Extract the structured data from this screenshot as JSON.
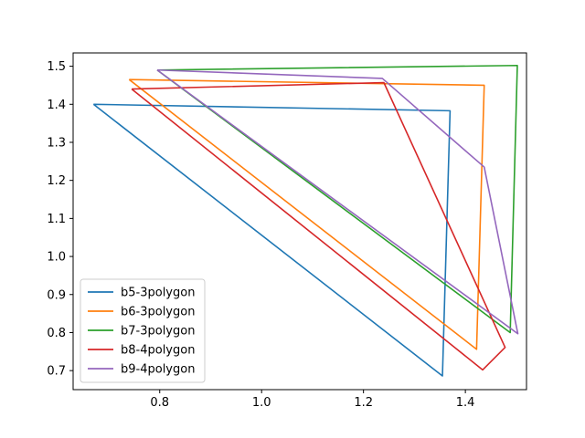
{
  "chart_data": {
    "type": "line",
    "xlim": [
      0.63,
      1.52
    ],
    "ylim": [
      0.65,
      1.535
    ],
    "xticks": [
      0.8,
      1.0,
      1.2,
      1.4
    ],
    "xtick_labels": [
      "0.8",
      "1.0",
      "1.2",
      "1.4"
    ],
    "yticks": [
      0.7,
      0.8,
      0.9,
      1.0,
      1.1,
      1.2,
      1.3,
      1.4,
      1.5
    ],
    "ytick_labels": [
      "0.7",
      "0.8",
      "0.9",
      "1.0",
      "1.1",
      "1.2",
      "1.3",
      "1.4",
      "1.5"
    ],
    "grid": false,
    "legend_position": "lower-left",
    "series": [
      {
        "name": "b5-3polygon",
        "color": "#1f77b4",
        "x": [
          0.67,
          1.37,
          1.355,
          0.67
        ],
        "y": [
          1.4,
          1.383,
          0.686,
          1.4
        ]
      },
      {
        "name": "b6-3polygon",
        "color": "#ff7f0e",
        "x": [
          0.74,
          1.437,
          1.422,
          0.74
        ],
        "y": [
          1.465,
          1.45,
          0.756,
          1.465
        ]
      },
      {
        "name": "b7-3polygon",
        "color": "#2ca02c",
        "x": [
          0.795,
          1.502,
          1.488,
          0.795
        ],
        "y": [
          1.49,
          1.502,
          0.8,
          1.49
        ]
      },
      {
        "name": "b8-4polygon",
        "color": "#d62728",
        "x": [
          0.745,
          1.24,
          1.478,
          1.434,
          0.745
        ],
        "y": [
          1.44,
          1.457,
          0.761,
          0.702,
          1.44
        ]
      },
      {
        "name": "b9-4polygon",
        "color": "#9467bd",
        "x": [
          0.795,
          1.237,
          1.437,
          1.503,
          0.795
        ],
        "y": [
          1.49,
          1.468,
          1.235,
          0.797,
          1.49
        ]
      }
    ]
  }
}
